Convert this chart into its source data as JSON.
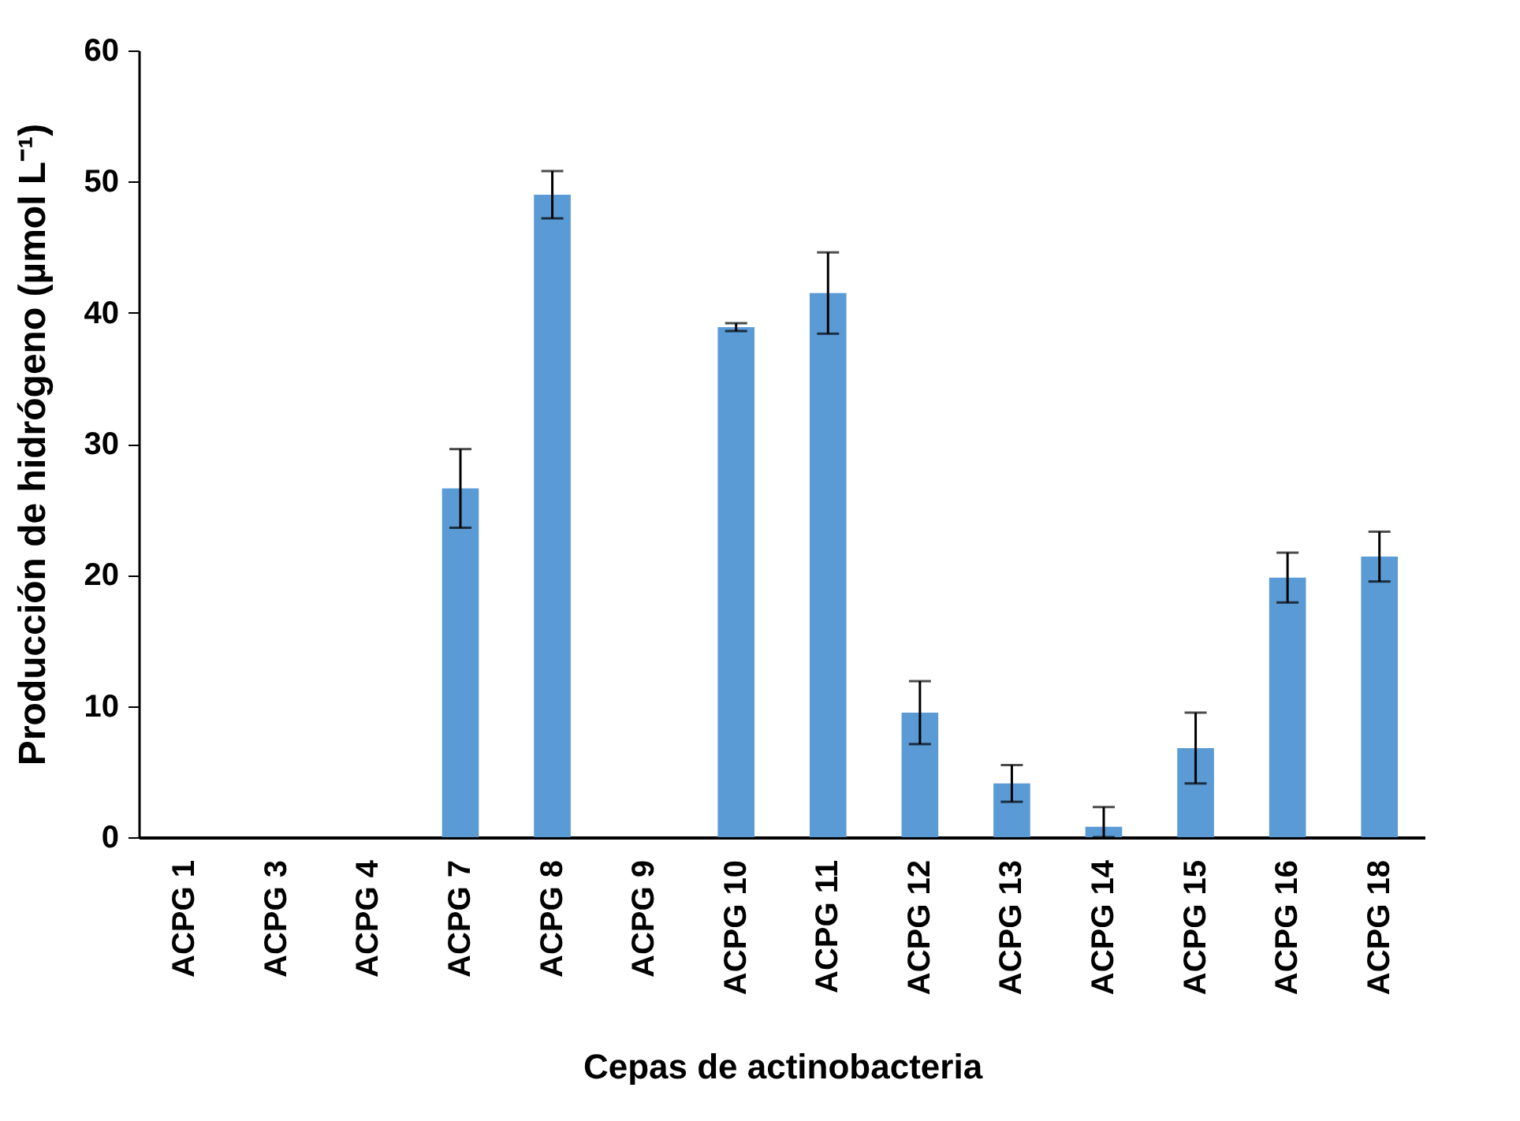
{
  "chart_data": {
    "type": "bar",
    "xlabel": "Cepas de actinobacteria",
    "ylabel": "Producción de hidrógeno (µmol L⁻¹)",
    "categories": [
      "ACPG 1",
      "ACPG 3",
      "ACPG 4",
      "ACPG 7",
      "ACPG 8",
      "ACPG 9",
      "ACPG 10",
      "ACPG 11",
      "ACPG 12",
      "ACPG 13",
      "ACPG 14",
      "ACPG 15",
      "ACPG 16",
      "ACPG 18"
    ],
    "values": [
      0,
      0,
      0,
      26.6,
      49.0,
      0,
      38.9,
      41.5,
      9.5,
      4.1,
      0.8,
      6.8,
      19.8,
      21.4
    ],
    "errors": [
      null,
      null,
      null,
      3.0,
      1.8,
      null,
      0.3,
      3.1,
      2.4,
      1.4,
      [
        0,
        2.3
      ],
      2.7,
      1.9,
      1.9
    ],
    "color": "#5b9bd5",
    "ylim": [
      0,
      60
    ],
    "yticks": [
      0,
      10,
      20,
      30,
      40,
      50,
      60
    ],
    "grid": false
  }
}
